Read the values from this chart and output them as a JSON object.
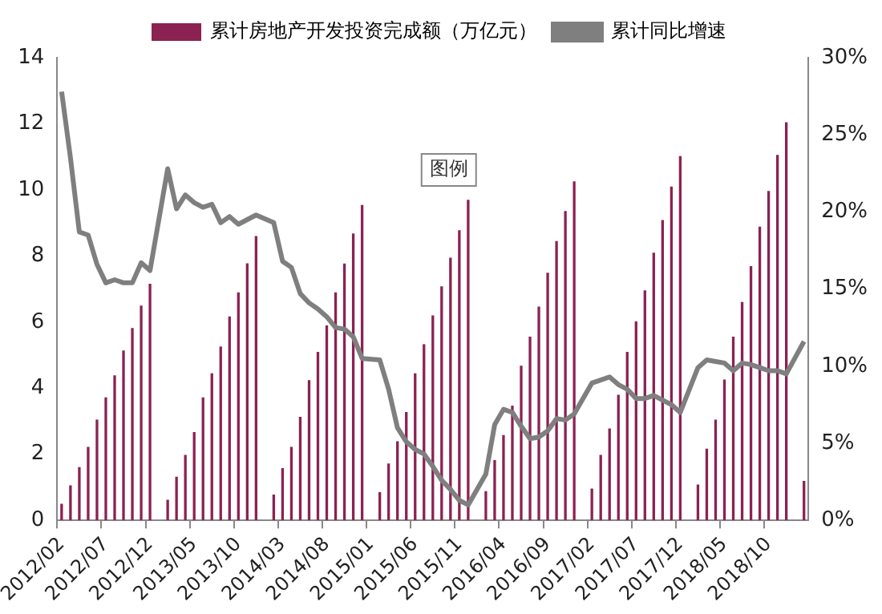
{
  "chart_data": {
    "type": "bar",
    "legend": "top",
    "grid": false,
    "categories": [
      "2012/02",
      null,
      null,
      null,
      null,
      "2012/07",
      null,
      null,
      null,
      null,
      "2012/12",
      null,
      null,
      null,
      null,
      "2013/05",
      null,
      null,
      null,
      null,
      "2013/10",
      null,
      null,
      null,
      null,
      "2014/03",
      null,
      null,
      null,
      null,
      "2014/08",
      null,
      null,
      null,
      null,
      "2015/01",
      null,
      null,
      null,
      null,
      "2015/06",
      null,
      null,
      null,
      null,
      "2015/11",
      null,
      null,
      null,
      null,
      "2016/04",
      null,
      null,
      null,
      null,
      "2016/09",
      null,
      null,
      null,
      null,
      "2017/02",
      null,
      null,
      null,
      null,
      "2017/07",
      null,
      null,
      null,
      null,
      "2017/12",
      null,
      null,
      null,
      null,
      "2018/05",
      null,
      null,
      null,
      null,
      "2018/10",
      null,
      null,
      null,
      null
    ],
    "series": [
      {
        "name": "累计房地产开发投资完成额（万亿元）",
        "color": "#8b2252",
        "values": [
          0.5,
          1.06,
          1.61,
          2.22,
          3.05,
          3.72,
          4.39,
          5.14,
          5.82,
          6.5,
          7.16,
          null,
          0.62,
          1.32,
          1.98,
          2.67,
          3.72,
          4.45,
          5.26,
          6.17,
          6.9,
          7.78,
          8.6,
          null,
          0.78,
          1.58,
          2.22,
          3.13,
          4.24,
          5.1,
          5.9,
          6.9,
          7.77,
          8.68,
          9.54,
          null,
          0.85,
          1.72,
          2.39,
          3.28,
          4.45,
          5.33,
          6.2,
          7.08,
          7.95,
          8.78,
          9.7,
          null,
          0.88,
          1.82,
          2.58,
          3.47,
          4.68,
          5.56,
          6.47,
          7.49,
          8.45,
          9.36,
          10.26,
          null,
          0.96,
          1.98,
          2.78,
          3.8,
          5.1,
          6.02,
          6.96,
          8.1,
          9.09,
          10.1,
          11.02,
          null,
          1.08,
          2.17,
          3.05,
          4.26,
          5.56,
          6.61,
          7.69,
          8.89,
          9.97,
          11.06,
          12.05,
          null,
          1.19
        ]
      },
      {
        "name": "累计同比增速",
        "type": "line",
        "axis": "y2",
        "color": "#7f7f7f",
        "values": [
          27.8,
          23.5,
          18.7,
          18.5,
          16.6,
          15.4,
          15.6,
          15.4,
          15.4,
          16.7,
          16.2,
          null,
          22.8,
          20.2,
          21.1,
          20.6,
          20.3,
          20.5,
          19.3,
          19.7,
          19.2,
          19.5,
          19.8,
          null,
          19.3,
          16.8,
          16.4,
          14.7,
          14.1,
          13.7,
          13.2,
          12.5,
          12.4,
          11.9,
          10.5,
          null,
          10.4,
          8.5,
          6.0,
          5.1,
          4.6,
          4.3,
          3.5,
          2.6,
          2.0,
          1.3,
          1.0,
          null,
          3.0,
          6.2,
          7.2,
          7.0,
          6.1,
          5.3,
          5.4,
          5.8,
          6.6,
          6.5,
          6.9,
          null,
          8.9,
          9.1,
          9.3,
          8.8,
          8.5,
          7.9,
          7.9,
          8.1,
          7.8,
          7.5,
          7.0,
          null,
          9.9,
          10.4,
          10.3,
          10.2,
          9.7,
          10.2,
          10.1,
          9.9,
          9.7,
          9.7,
          9.5,
          null,
          11.6
        ]
      }
    ],
    "ylim": [
      0,
      14
    ],
    "yticks": [
      0,
      2,
      4,
      6,
      8,
      10,
      12,
      14
    ],
    "y2lim": [
      0,
      30
    ],
    "y2ticks": [
      {
        "value": 0,
        "label": "0%"
      },
      {
        "value": 5,
        "label": "5%"
      },
      {
        "value": 10,
        "label": "10%"
      },
      {
        "value": 15,
        "label": "15%"
      },
      {
        "value": 20,
        "label": "20%"
      },
      {
        "value": 25,
        "label": "25%"
      },
      {
        "value": 30,
        "label": "30%"
      }
    ],
    "marker": "none",
    "line_style": "solid",
    "annotations": [
      "图例"
    ]
  }
}
